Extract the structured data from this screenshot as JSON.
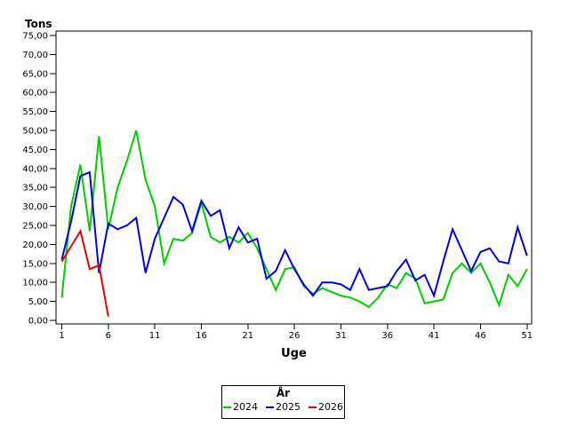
{
  "chart_data": {
    "type": "line",
    "title": "",
    "xlabel": "Uge",
    "ylabel": "Tons",
    "x_ticks": [
      1,
      6,
      11,
      16,
      21,
      26,
      31,
      36,
      41,
      46,
      51
    ],
    "y_ticks": [
      0,
      5,
      10,
      15,
      20,
      25,
      30,
      35,
      40,
      45,
      50,
      55,
      60,
      65,
      70,
      75
    ],
    "y_tick_labels": [
      "0,00",
      "5,00",
      "10,00",
      "15,00",
      "20,00",
      "25,00",
      "30,00",
      "35,00",
      "40,00",
      "45,00",
      "50,00",
      "55,00",
      "60,00",
      "65,00",
      "70,00",
      "75,00"
    ],
    "xlim": [
      0.4,
      51.5
    ],
    "ylim": [
      0,
      76.2
    ],
    "grid": false,
    "axis_color": "#000000",
    "background_color": "#ffffff",
    "legend": {
      "title": "År",
      "position": "bottom-center"
    },
    "series": [
      {
        "name": "2024",
        "color": "#00cc00",
        "start_week": 1,
        "values": [
          6,
          30,
          41,
          23.5,
          48.5,
          24,
          35,
          42,
          50,
          37,
          30,
          15,
          21.5,
          21,
          23,
          31,
          22,
          20.5,
          22,
          20.5,
          23,
          19,
          13.5,
          8,
          13.5,
          14,
          9,
          7,
          8.5,
          7.5,
          6.5,
          6,
          5,
          3.5,
          6,
          9.5,
          8.5,
          12.5,
          11,
          4.5,
          5,
          5.5,
          12.5,
          15,
          12.5,
          15,
          10,
          4,
          12,
          9,
          13.5
        ]
      },
      {
        "name": "2025",
        "color": "#0000dd",
        "start_week": 1,
        "values": [
          16,
          26,
          38,
          39,
          12.5,
          25.5,
          24,
          25,
          27,
          12.5,
          21.5,
          27,
          32.5,
          30.5,
          23.5,
          31.5,
          27.5,
          29,
          19,
          24.5,
          20.5,
          21.5,
          11,
          13,
          18.5,
          13.5,
          9.5,
          6.5,
          10,
          10,
          9.5,
          8,
          13.5,
          8,
          8.5,
          9,
          13,
          16,
          10.5,
          12,
          6.5,
          15.5,
          24,
          18.5,
          13,
          18,
          19,
          15.5,
          15,
          24.5,
          17
        ]
      },
      {
        "name": "2026",
        "color": "#ee0000",
        "start_week": 1,
        "values": [
          15.5,
          19.5,
          23.5,
          13.5,
          14.5,
          1
        ]
      }
    ]
  }
}
